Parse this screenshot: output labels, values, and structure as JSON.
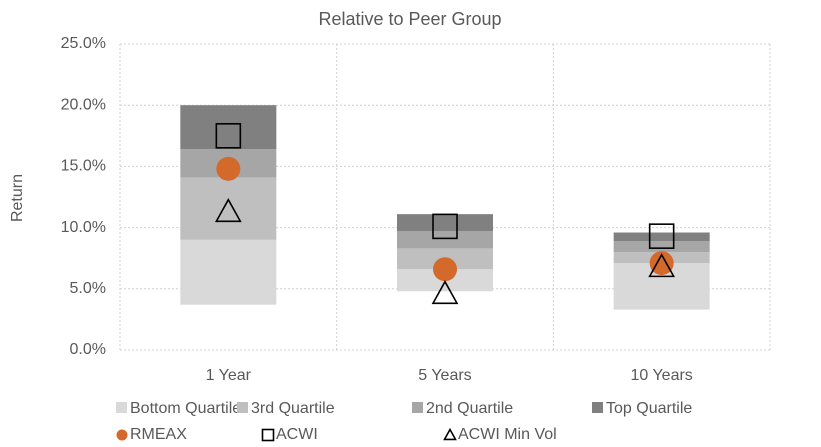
{
  "chart_data": {
    "type": "floating_stacked_bar",
    "title": "Relative to Peer Group",
    "y_label": "Return",
    "categories": [
      "1 Year",
      "5 Years",
      "10 Years"
    ],
    "series": [
      {
        "values": [
          3.7,
          4.8,
          3.3
        ]
      },
      {
        "name": "Bottom Quartile",
        "color": "#d9d9d9",
        "values": [
          5.3,
          1.8,
          3.8
        ]
      },
      {
        "name": "3rd Quartile",
        "color": "#bfbfbf",
        "values": [
          5.1,
          1.7,
          0.9
        ]
      },
      {
        "name": "2nd Quartile",
        "color": "#a6a6a6",
        "values": [
          2.3,
          1.4,
          0.9
        ]
      },
      {
        "name": "Top Quartile",
        "color": "#808080",
        "values": [
          3.6,
          1.4,
          0.7
        ]
      }
    ],
    "markers": [
      {
        "name": "RMEAX",
        "shape": "circle",
        "color": "#d4692c",
        "values": [
          14.8,
          6.6,
          7.1
        ]
      },
      {
        "name": "ACWI",
        "shape": "square",
        "color": "#000000",
        "values": [
          17.5,
          10.1,
          9.3
        ]
      },
      {
        "name": "ACWI Min Vol",
        "shape": "triangle",
        "color": "#000000",
        "values": [
          11.3,
          4.6,
          6.8
        ]
      }
    ],
    "ylim": [
      0,
      25
    ],
    "yticks": [
      {
        "value": 0,
        "label": "0.0%"
      },
      {
        "value": 5,
        "label": "5.0%"
      },
      {
        "value": 10,
        "label": "10.0%"
      },
      {
        "value": 15,
        "label": "15.0%"
      },
      {
        "value": 20,
        "label": "20.0%"
      },
      {
        "value": 25,
        "label": "25.0%"
      }
    ],
    "grid": true
  }
}
